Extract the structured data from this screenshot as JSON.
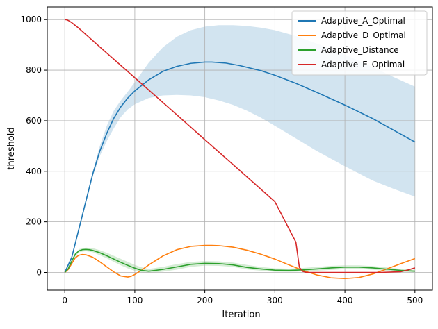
{
  "chart_data": {
    "type": "line",
    "title": "",
    "xlabel": "Iteration",
    "ylabel": "threshold",
    "xlim": [
      -25,
      525
    ],
    "ylim": [
      -70,
      1050
    ],
    "xticks": [
      0,
      100,
      200,
      300,
      400,
      500
    ],
    "yticks": [
      0,
      200,
      400,
      600,
      800,
      1000
    ],
    "grid": true,
    "legend_position": "top-right",
    "series": [
      {
        "name": "Adaptive_A_Optimal",
        "color": "#1f77b4",
        "x": [
          0,
          10,
          20,
          30,
          40,
          50,
          60,
          70,
          80,
          90,
          100,
          120,
          140,
          160,
          180,
          200,
          210,
          230,
          250,
          280,
          300,
          330,
          360,
          400,
          440,
          470,
          500
        ],
        "y": [
          0,
          60,
          170,
          280,
          390,
          480,
          550,
          610,
          655,
          690,
          718,
          762,
          795,
          815,
          827,
          832,
          832,
          828,
          818,
          798,
          780,
          748,
          712,
          662,
          608,
          562,
          516
        ],
        "band": {
          "color": "#1f77b4",
          "opacity": 0.2,
          "x": [
            0,
            10,
            20,
            30,
            40,
            50,
            60,
            70,
            80,
            90,
            100,
            120,
            140,
            160,
            180,
            200,
            220,
            240,
            260,
            280,
            300,
            330,
            360,
            400,
            440,
            470,
            500
          ],
          "upper": [
            0,
            60,
            170,
            285,
            400,
            500,
            580,
            640,
            680,
            715,
            752,
            830,
            890,
            932,
            958,
            972,
            978,
            978,
            975,
            968,
            958,
            935,
            905,
            862,
            812,
            772,
            735
          ],
          "lower": [
            0,
            60,
            170,
            275,
            380,
            460,
            520,
            570,
            615,
            645,
            665,
            690,
            700,
            702,
            700,
            693,
            680,
            663,
            640,
            612,
            580,
            530,
            480,
            420,
            363,
            330,
            300
          ]
        }
      },
      {
        "name": "Adaptive_D_Optimal",
        "color": "#ff7f0e",
        "x": [
          0,
          5,
          10,
          15,
          20,
          25,
          30,
          40,
          50,
          60,
          70,
          80,
          90,
          95,
          100,
          110,
          120,
          140,
          160,
          180,
          200,
          210,
          220,
          240,
          260,
          280,
          300,
          320,
          340,
          360,
          380,
          400,
          420,
          440,
          460,
          480,
          500
        ],
        "y": [
          0,
          12,
          35,
          58,
          68,
          71,
          70,
          60,
          42,
          22,
          2,
          -14,
          -18,
          -15,
          -8,
          10,
          30,
          65,
          90,
          103,
          107,
          107,
          106,
          100,
          88,
          72,
          53,
          30,
          8,
          -10,
          -21,
          -24,
          -20,
          -6,
          14,
          35,
          55
        ]
      },
      {
        "name": "Adaptive_Distance",
        "color": "#2ca02c",
        "x": [
          0,
          5,
          10,
          15,
          20,
          25,
          30,
          35,
          40,
          50,
          60,
          70,
          80,
          90,
          100,
          110,
          120,
          140,
          160,
          180,
          200,
          220,
          240,
          260,
          280,
          300,
          320,
          340,
          360,
          380,
          400,
          420,
          440,
          460,
          480,
          500
        ],
        "y": [
          0,
          15,
          45,
          72,
          85,
          90,
          91,
          90,
          87,
          78,
          66,
          53,
          40,
          28,
          17,
          8,
          5,
          12,
          22,
          32,
          36,
          35,
          30,
          20,
          14,
          9,
          8,
          10,
          14,
          18,
          21,
          21,
          18,
          13,
          8,
          5
        ],
        "band": {
          "color": "#2ca02c",
          "opacity": 0.2,
          "x": [
            0,
            10,
            20,
            30,
            40,
            50,
            60,
            70,
            80,
            90,
            100,
            110,
            120,
            140,
            160,
            180,
            200,
            220,
            240,
            260,
            280,
            300,
            320,
            340,
            360,
            380,
            400,
            420,
            440,
            460,
            480,
            500
          ],
          "upper": [
            0,
            48,
            92,
            98,
            96,
            88,
            78,
            66,
            54,
            42,
            30,
            20,
            14,
            22,
            33,
            42,
            45,
            44,
            39,
            30,
            22,
            16,
            15,
            18,
            22,
            26,
            28,
            28,
            25,
            20,
            14,
            10
          ],
          "lower": [
            0,
            42,
            80,
            84,
            80,
            68,
            56,
            42,
            28,
            16,
            6,
            0,
            -2,
            3,
            11,
            22,
            27,
            26,
            22,
            12,
            7,
            3,
            2,
            4,
            7,
            10,
            13,
            14,
            11,
            6,
            2,
            0
          ]
        }
      },
      {
        "name": "Adaptive_E_Optimal",
        "color": "#d62728",
        "x": [
          0,
          3,
          6,
          10,
          20,
          50,
          100,
          150,
          200,
          250,
          300,
          330,
          335,
          340,
          345,
          400,
          450,
          480,
          490,
          500
        ],
        "y": [
          1000,
          999,
          995,
          988,
          966,
          892,
          770,
          648,
          525,
          403,
          280,
          120,
          20,
          4,
          0,
          0,
          0,
          3,
          10,
          18
        ]
      }
    ]
  }
}
